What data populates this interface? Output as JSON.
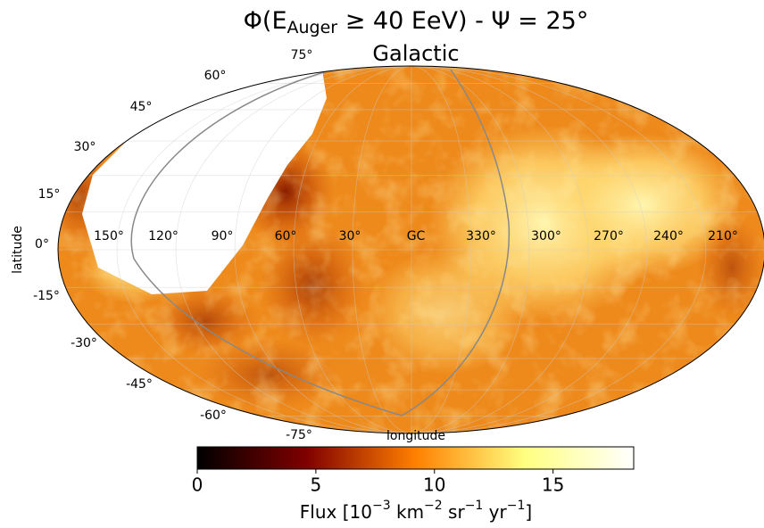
{
  "chart_data": {
    "type": "skymap",
    "title": [
      "Φ(E",
      "Auger",
      " ≥ 40 EeV) - Ψ = 25°"
    ],
    "subtitle": "Galactic",
    "xlabel": "longitude",
    "ylabel": "latitude",
    "longitude_labels": [
      "150°",
      "120°",
      "90°",
      "60°",
      "30°",
      "GC",
      "330°",
      "300°",
      "270°",
      "240°",
      "210°"
    ],
    "latitude_labels": [
      "75°",
      "60°",
      "45°",
      "30°",
      "15°",
      "0°",
      "-15°",
      "-30°",
      "-45°",
      "-60°",
      "-75°"
    ],
    "colorbar": {
      "label": [
        "Flux [10",
        "−3",
        " km",
        "−2",
        " sr",
        "−1",
        " yr",
        "−1",
        "]"
      ],
      "lim": [
        0,
        18.4
      ],
      "ticks": [
        0,
        5,
        10,
        15
      ],
      "colormap": "afmhot"
    }
  }
}
